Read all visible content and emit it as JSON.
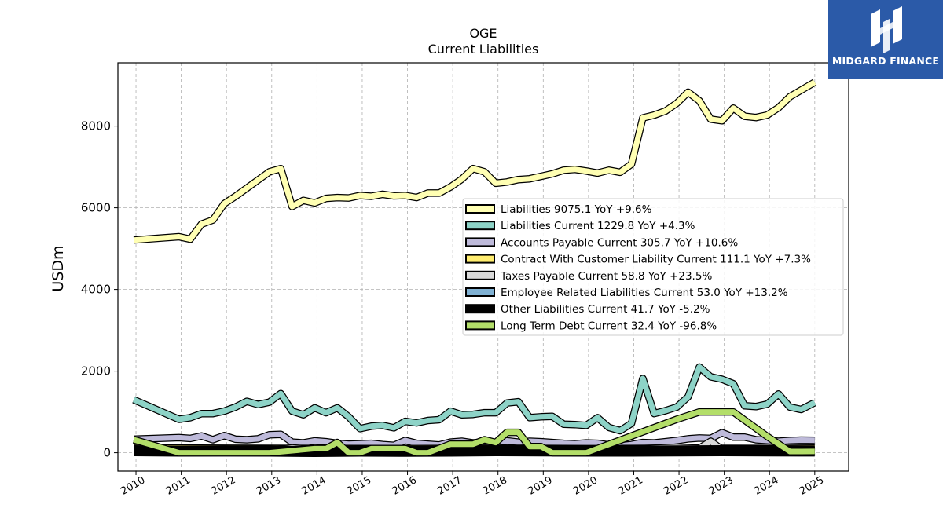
{
  "chart_data": {
    "type": "line",
    "title": "OGE",
    "subtitle": "Current  Liabilities",
    "ylabel": "USDm",
    "xlabel": "",
    "xlim": [
      2009.6,
      2025.75
    ],
    "ylim": [
      -450,
      9550
    ],
    "yticks": [
      0,
      2000,
      4000,
      6000,
      8000
    ],
    "xticks": [
      "2010",
      "2011",
      "2012",
      "2013",
      "2014",
      "2015",
      "2016",
      "2017",
      "2018",
      "2019",
      "2020",
      "2021",
      "2022",
      "2023",
      "2024",
      "2025"
    ],
    "grid": true,
    "legend_position": "center-right",
    "series": [
      {
        "name": "Liabilities",
        "legend": "Liabilities  9075.1 YoY +9.6%",
        "color": "#ffffb3",
        "width": 7,
        "points": [
          [
            2009.95,
            5210
          ],
          [
            2010.95,
            5290
          ],
          [
            2011.2,
            5230
          ],
          [
            2011.45,
            5600
          ],
          [
            2011.7,
            5700
          ],
          [
            2011.95,
            6100
          ],
          [
            2012.2,
            6280
          ],
          [
            2012.45,
            6480
          ],
          [
            2012.7,
            6680
          ],
          [
            2012.95,
            6880
          ],
          [
            2013.2,
            6960
          ],
          [
            2013.45,
            6030
          ],
          [
            2013.7,
            6180
          ],
          [
            2013.95,
            6120
          ],
          [
            2014.2,
            6230
          ],
          [
            2014.45,
            6250
          ],
          [
            2014.7,
            6240
          ],
          [
            2014.95,
            6300
          ],
          [
            2015.2,
            6280
          ],
          [
            2015.45,
            6330
          ],
          [
            2015.7,
            6290
          ],
          [
            2015.95,
            6300
          ],
          [
            2016.2,
            6250
          ],
          [
            2016.45,
            6360
          ],
          [
            2016.7,
            6360
          ],
          [
            2016.95,
            6510
          ],
          [
            2017.2,
            6700
          ],
          [
            2017.45,
            6960
          ],
          [
            2017.7,
            6880
          ],
          [
            2017.95,
            6600
          ],
          [
            2018.2,
            6630
          ],
          [
            2018.45,
            6690
          ],
          [
            2018.7,
            6710
          ],
          [
            2018.95,
            6770
          ],
          [
            2019.2,
            6830
          ],
          [
            2019.45,
            6920
          ],
          [
            2019.7,
            6940
          ],
          [
            2019.95,
            6900
          ],
          [
            2020.2,
            6850
          ],
          [
            2020.45,
            6920
          ],
          [
            2020.7,
            6870
          ],
          [
            2020.95,
            7070
          ],
          [
            2021.2,
            8200
          ],
          [
            2021.45,
            8270
          ],
          [
            2021.7,
            8370
          ],
          [
            2021.95,
            8560
          ],
          [
            2022.2,
            8830
          ],
          [
            2022.45,
            8620
          ],
          [
            2022.7,
            8170
          ],
          [
            2022.95,
            8130
          ],
          [
            2023.2,
            8440
          ],
          [
            2023.45,
            8240
          ],
          [
            2023.7,
            8210
          ],
          [
            2023.95,
            8270
          ],
          [
            2024.2,
            8450
          ],
          [
            2024.45,
            8720
          ],
          [
            2024.7,
            8880
          ],
          [
            2025.0,
            9075.1
          ]
        ]
      },
      {
        "name": "Liabilities Current",
        "legend": "Liabilities Current  1229.8 YoY +4.3%",
        "color": "#8dd3c7",
        "width": 7,
        "points": [
          [
            2009.95,
            1300
          ],
          [
            2010.95,
            820
          ],
          [
            2011.2,
            860
          ],
          [
            2011.45,
            960
          ],
          [
            2011.7,
            960
          ],
          [
            2011.95,
            1020
          ],
          [
            2012.2,
            1120
          ],
          [
            2012.45,
            1260
          ],
          [
            2012.7,
            1180
          ],
          [
            2012.95,
            1240
          ],
          [
            2013.2,
            1450
          ],
          [
            2013.45,
            1020
          ],
          [
            2013.7,
            930
          ],
          [
            2013.95,
            1100
          ],
          [
            2014.2,
            980
          ],
          [
            2014.45,
            1100
          ],
          [
            2014.7,
            880
          ],
          [
            2014.95,
            590
          ],
          [
            2015.2,
            650
          ],
          [
            2015.45,
            670
          ],
          [
            2015.7,
            610
          ],
          [
            2015.95,
            770
          ],
          [
            2016.2,
            730
          ],
          [
            2016.45,
            790
          ],
          [
            2016.7,
            810
          ],
          [
            2016.95,
            1020
          ],
          [
            2017.2,
            930
          ],
          [
            2017.45,
            940
          ],
          [
            2017.7,
            980
          ],
          [
            2017.95,
            980
          ],
          [
            2018.2,
            1220
          ],
          [
            2018.45,
            1250
          ],
          [
            2018.7,
            860
          ],
          [
            2018.95,
            880
          ],
          [
            2019.2,
            890
          ],
          [
            2019.45,
            700
          ],
          [
            2019.7,
            690
          ],
          [
            2019.95,
            670
          ],
          [
            2020.2,
            860
          ],
          [
            2020.45,
            620
          ],
          [
            2020.7,
            540
          ],
          [
            2020.95,
            720
          ],
          [
            2021.2,
            1820
          ],
          [
            2021.45,
            960
          ],
          [
            2021.7,
            1030
          ],
          [
            2021.95,
            1120
          ],
          [
            2022.2,
            1370
          ],
          [
            2022.45,
            2100
          ],
          [
            2022.7,
            1860
          ],
          [
            2022.95,
            1800
          ],
          [
            2023.2,
            1690
          ],
          [
            2023.45,
            1150
          ],
          [
            2023.7,
            1130
          ],
          [
            2023.95,
            1190
          ],
          [
            2024.2,
            1440
          ],
          [
            2024.45,
            1120
          ],
          [
            2024.7,
            1060
          ],
          [
            2025.0,
            1229.8
          ]
        ]
      },
      {
        "name": "Accounts Payable Current",
        "legend": "Accounts Payable Current  305.7 YoY +10.6%",
        "color": "#bebada",
        "width": 7,
        "points": [
          [
            2009.95,
            330
          ],
          [
            2010.95,
            370
          ],
          [
            2011.2,
            350
          ],
          [
            2011.45,
            410
          ],
          [
            2011.7,
            320
          ],
          [
            2011.95,
            420
          ],
          [
            2012.2,
            330
          ],
          [
            2012.45,
            320
          ],
          [
            2012.7,
            340
          ],
          [
            2012.95,
            440
          ],
          [
            2013.2,
            450
          ],
          [
            2013.45,
            260
          ],
          [
            2013.7,
            240
          ],
          [
            2013.95,
            290
          ],
          [
            2014.2,
            270
          ],
          [
            2014.45,
            230
          ],
          [
            2014.7,
            210
          ],
          [
            2014.95,
            220
          ],
          [
            2015.2,
            230
          ],
          [
            2015.45,
            200
          ],
          [
            2015.7,
            180
          ],
          [
            2015.95,
            300
          ],
          [
            2016.2,
            230
          ],
          [
            2016.45,
            210
          ],
          [
            2016.7,
            190
          ],
          [
            2016.95,
            260
          ],
          [
            2017.2,
            280
          ],
          [
            2017.45,
            240
          ],
          [
            2017.7,
            270
          ],
          [
            2017.95,
            250
          ],
          [
            2018.2,
            290
          ],
          [
            2018.45,
            260
          ],
          [
            2018.7,
            280
          ],
          [
            2018.95,
            270
          ],
          [
            2019.2,
            250
          ],
          [
            2019.45,
            230
          ],
          [
            2019.7,
            220
          ],
          [
            2019.95,
            240
          ],
          [
            2020.2,
            230
          ],
          [
            2020.45,
            190
          ],
          [
            2020.7,
            170
          ],
          [
            2020.95,
            200
          ],
          [
            2021.2,
            250
          ],
          [
            2021.45,
            240
          ],
          [
            2021.7,
            270
          ],
          [
            2021.95,
            300
          ],
          [
            2022.2,
            340
          ],
          [
            2022.45,
            360
          ],
          [
            2022.7,
            350
          ],
          [
            2022.95,
            490
          ],
          [
            2023.2,
            380
          ],
          [
            2023.45,
            380
          ],
          [
            2023.7,
            320
          ],
          [
            2023.95,
            300
          ],
          [
            2024.2,
            280
          ],
          [
            2024.45,
            300
          ],
          [
            2024.7,
            310
          ],
          [
            2025.0,
            305.7
          ]
        ]
      },
      {
        "name": "Contract With Customer Liability Current",
        "legend": "Contract With Customer Liability Current  111.1 YoY +7.3%",
        "color": "#ffed6f",
        "width": 7,
        "points": [
          [
            2009.95,
            120
          ],
          [
            2011.95,
            110
          ],
          [
            2013.95,
            105
          ],
          [
            2015.95,
            100
          ],
          [
            2017.95,
            110
          ],
          [
            2019.95,
            100
          ],
          [
            2021.95,
            110
          ],
          [
            2023.95,
            105
          ],
          [
            2025.0,
            111.1
          ]
        ]
      },
      {
        "name": "Taxes Payable Current",
        "legend": "Taxes Payable Current  58.8 YoY +23.5%",
        "color": "#d9d9d9",
        "width": 7,
        "points": [
          [
            2009.95,
            60
          ],
          [
            2010.95,
            55
          ],
          [
            2011.95,
            90
          ],
          [
            2012.95,
            50
          ],
          [
            2013.45,
            120
          ],
          [
            2013.95,
            70
          ],
          [
            2014.95,
            80
          ],
          [
            2015.95,
            60
          ],
          [
            2016.95,
            70
          ],
          [
            2017.95,
            80
          ],
          [
            2018.95,
            90
          ],
          [
            2019.95,
            80
          ],
          [
            2020.95,
            90
          ],
          [
            2021.95,
            130
          ],
          [
            2022.45,
            110
          ],
          [
            2022.7,
            280
          ],
          [
            2022.95,
            80
          ],
          [
            2023.95,
            70
          ],
          [
            2025.0,
            58.8
          ]
        ]
      },
      {
        "name": "Employee Related Liabilities Current",
        "legend": "Employee Related Liabilities Current  53.0 YoY +13.2%",
        "color": "#80b1d3",
        "width": 7,
        "points": [
          [
            2009.95,
            70
          ],
          [
            2011.95,
            60
          ],
          [
            2013.95,
            50
          ],
          [
            2015.95,
            55
          ],
          [
            2017.95,
            60
          ],
          [
            2019.95,
            50
          ],
          [
            2021.95,
            45
          ],
          [
            2023.95,
            47
          ],
          [
            2025.0,
            53.0
          ]
        ]
      },
      {
        "name": "Other Liabilities Current",
        "legend": "Other Liabilities Current  41.7 YoY -5.2%",
        "color": "#000000",
        "width": 14,
        "points": [
          [
            2009.95,
            50
          ],
          [
            2010.95,
            40
          ],
          [
            2011.95,
            45
          ],
          [
            2012.95,
            40
          ],
          [
            2013.95,
            30
          ],
          [
            2014.95,
            40
          ],
          [
            2015.95,
            35
          ],
          [
            2016.95,
            40
          ],
          [
            2017.95,
            50
          ],
          [
            2018.95,
            45
          ],
          [
            2019.95,
            40
          ],
          [
            2020.95,
            40
          ],
          [
            2021.95,
            45
          ],
          [
            2022.95,
            50
          ],
          [
            2023.95,
            45
          ],
          [
            2025.0,
            41.7
          ]
        ]
      },
      {
        "name": "Long Term Debt Current",
        "legend": "Long Term Debt Current  32.4 YoY -96.8%",
        "color": "#b3de69",
        "width": 7,
        "points": [
          [
            2009.95,
            320
          ],
          [
            2010.95,
            0
          ],
          [
            2011.95,
            0
          ],
          [
            2012.95,
            0
          ],
          [
            2013.95,
            100
          ],
          [
            2014.2,
            100
          ],
          [
            2014.45,
            250
          ],
          [
            2014.7,
            0
          ],
          [
            2014.95,
            0
          ],
          [
            2015.2,
            100
          ],
          [
            2015.95,
            100
          ],
          [
            2016.2,
            0
          ],
          [
            2016.45,
            0
          ],
          [
            2016.95,
            210
          ],
          [
            2017.45,
            210
          ],
          [
            2017.7,
            320
          ],
          [
            2017.95,
            250
          ],
          [
            2018.2,
            500
          ],
          [
            2018.45,
            500
          ],
          [
            2018.7,
            150
          ],
          [
            2018.95,
            150
          ],
          [
            2019.2,
            0
          ],
          [
            2019.95,
            0
          ],
          [
            2021.95,
            820
          ],
          [
            2022.45,
            1000
          ],
          [
            2022.95,
            1000
          ],
          [
            2023.2,
            1000
          ],
          [
            2023.95,
            400
          ],
          [
            2024.45,
            30
          ],
          [
            2024.7,
            30
          ],
          [
            2025.0,
            32.4
          ]
        ]
      }
    ]
  },
  "logo": {
    "text": "MIDGARD FINANCE"
  }
}
